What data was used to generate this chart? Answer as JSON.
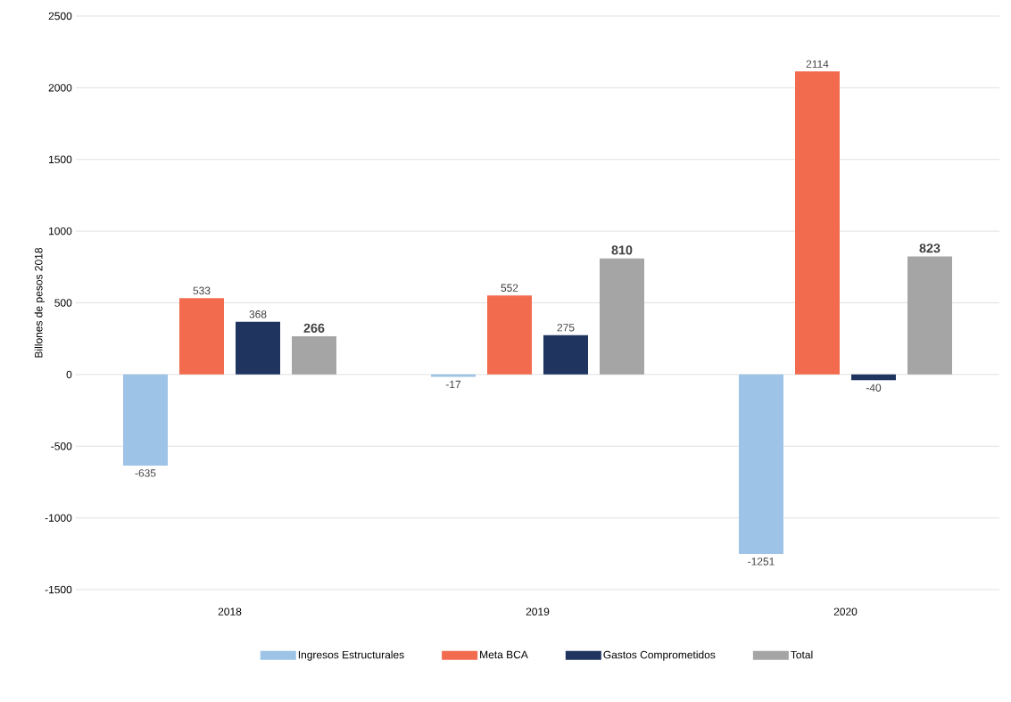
{
  "chart_data": {
    "type": "bar",
    "ylabel": "Billones de pesos 2018",
    "categories": [
      "2018",
      "2019",
      "2020"
    ],
    "series": [
      {
        "name": "Ingresos Estructurales",
        "color": "#9dc3e6",
        "values": [
          -635,
          -17,
          -1251
        ]
      },
      {
        "name": "Meta BCA",
        "color": "#f26b4f",
        "values": [
          533,
          552,
          2114
        ]
      },
      {
        "name": "Gastos Comprometidos",
        "color": "#1f3560",
        "values": [
          368,
          275,
          -40
        ]
      },
      {
        "name": "Total",
        "color": "#a5a5a5",
        "values": [
          266,
          810,
          823
        ]
      }
    ],
    "ylim": [
      -1500,
      2500
    ],
    "yticks": [
      -1500,
      -1000,
      -500,
      0,
      500,
      1000,
      1500,
      2000,
      2500
    ],
    "grid": "y",
    "legend": "bottom",
    "data_labels": true
  }
}
